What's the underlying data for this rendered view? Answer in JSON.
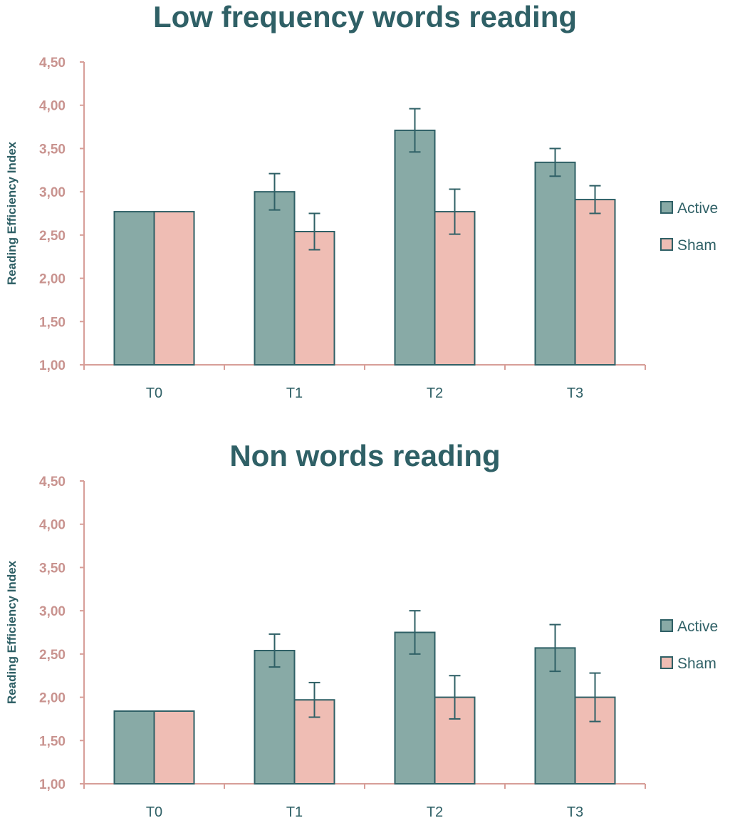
{
  "chart_data": [
    {
      "type": "bar",
      "title": "Low frequency words reading",
      "ylabel": "Reading Efficiency Index",
      "xlabel": "",
      "categories": [
        "T0",
        "T1",
        "T2",
        "T3"
      ],
      "ylim": [
        1.0,
        4.5
      ],
      "yticks": [
        "1,00",
        "1,50",
        "2,00",
        "2,50",
        "3,00",
        "3,50",
        "4,00",
        "4,50"
      ],
      "ytick_values": [
        1.0,
        1.5,
        2.0,
        2.5,
        3.0,
        3.5,
        4.0,
        4.5
      ],
      "legend_position": "right",
      "series": [
        {
          "name": "Active",
          "color": "#88aaa6",
          "values": [
            2.77,
            3.0,
            3.71,
            3.34
          ],
          "error": [
            0,
            0.21,
            0.25,
            0.16
          ]
        },
        {
          "name": "Sham",
          "color": "#efbdb4",
          "values": [
            2.77,
            2.54,
            2.77,
            2.91
          ],
          "error": [
            0,
            0.21,
            0.26,
            0.16
          ]
        }
      ]
    },
    {
      "type": "bar",
      "title": "Non words reading",
      "ylabel": "Reading Efficiency Index",
      "xlabel": "",
      "categories": [
        "T0",
        "T1",
        "T2",
        "T3"
      ],
      "ylim": [
        1.0,
        4.5
      ],
      "yticks": [
        "1,00",
        "1,50",
        "2,00",
        "2,50",
        "3,00",
        "3,50",
        "4,00",
        "4,50"
      ],
      "ytick_values": [
        1.0,
        1.5,
        2.0,
        2.5,
        3.0,
        3.5,
        4.0,
        4.5
      ],
      "legend_position": "right",
      "series": [
        {
          "name": "Active",
          "color": "#88aaa6",
          "values": [
            1.84,
            2.54,
            2.75,
            2.57
          ],
          "error": [
            0,
            0.19,
            0.25,
            0.27
          ]
        },
        {
          "name": "Sham",
          "color": "#efbdb4",
          "values": [
            1.84,
            1.97,
            2.0,
            2.0
          ],
          "error": [
            0,
            0.2,
            0.25,
            0.28
          ]
        }
      ]
    }
  ],
  "style": {
    "axis_color": "#d79e98",
    "text_color": "#2f6066",
    "bar_stroke": "#2f6066",
    "error_color": "#2f6066"
  }
}
